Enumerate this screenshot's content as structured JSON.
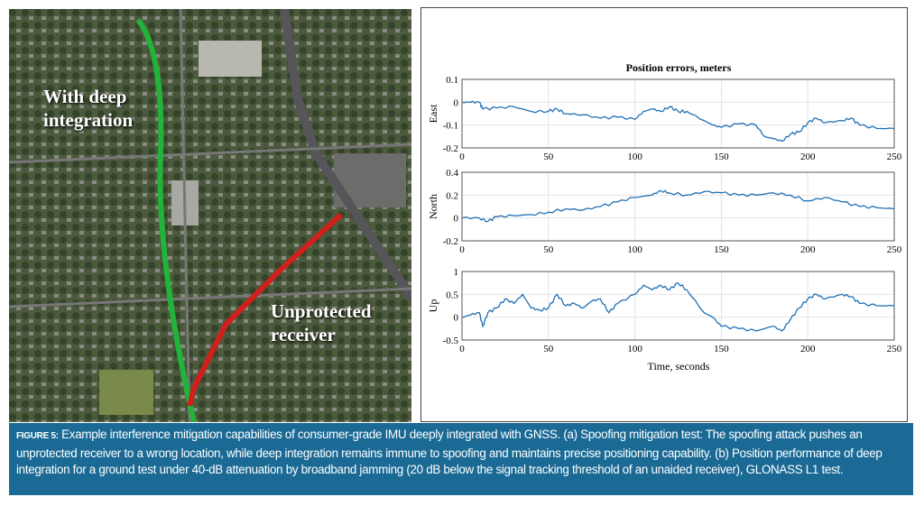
{
  "map": {
    "label_deep": "With deep integration",
    "label_deep_lines": [
      "With deep",
      "integration"
    ],
    "label_unprot_lines": [
      "Unprotected",
      "receiver"
    ],
    "colors": {
      "deep": "#22b33a",
      "unprotected": "#d0201c"
    }
  },
  "caption": {
    "figure": "FIGURE 5:",
    "text": " Example interference mitigation capabilities of consumer-grade IMU deeply integrated with GNSS. (a) Spoofing mitigation test: The spoofing attack pushes an unprotected receiver to a wrong location, while deep integration remains immune to spoofing and maintains precise positioning capability. (b) Position performance of deep integration for a ground test under 40-dB attenuation by broadband jamming (20 dB below the signal tracking threshold of an unaided receiver), GLONASS L1 test."
  },
  "chart_data": {
    "type": "line",
    "title": "Position errors, meters",
    "xlabel": "Time, seconds",
    "xlim": [
      0,
      250
    ],
    "xticks": [
      "0",
      "50",
      "100",
      "150",
      "200",
      "250"
    ],
    "line_color": "#1f6fb4",
    "grid": true,
    "panels": [
      {
        "ylabel": "East",
        "ylim": [
          -0.2,
          0.1
        ],
        "yticks": [
          "0.1",
          "0",
          "-0.1",
          "-0.2"
        ],
        "x": [
          0,
          5,
          10,
          12,
          20,
          30,
          40,
          50,
          55,
          60,
          70,
          80,
          90,
          100,
          105,
          110,
          115,
          120,
          125,
          130,
          140,
          145,
          150,
          160,
          170,
          175,
          180,
          185,
          190,
          195,
          200,
          205,
          210,
          220,
          225,
          230,
          240,
          250
        ],
        "y": [
          0,
          0,
          0,
          -0.03,
          -0.025,
          -0.02,
          -0.04,
          -0.04,
          -0.03,
          -0.05,
          -0.055,
          -0.07,
          -0.065,
          -0.075,
          -0.04,
          -0.03,
          -0.04,
          -0.02,
          -0.04,
          -0.04,
          -0.08,
          -0.1,
          -0.11,
          -0.095,
          -0.1,
          -0.15,
          -0.16,
          -0.17,
          -0.14,
          -0.13,
          -0.09,
          -0.07,
          -0.09,
          -0.08,
          -0.07,
          -0.1,
          -0.115,
          -0.115
        ]
      },
      {
        "ylabel": "North",
        "ylim": [
          -0.2,
          0.4
        ],
        "yticks": [
          "0.4",
          "0.2",
          "0",
          "-0.2"
        ],
        "x": [
          0,
          10,
          15,
          20,
          30,
          40,
          50,
          60,
          70,
          80,
          90,
          100,
          110,
          115,
          120,
          130,
          140,
          150,
          160,
          170,
          180,
          190,
          200,
          210,
          220,
          230,
          240,
          250
        ],
        "y": [
          0,
          0,
          -0.03,
          0.01,
          0.02,
          0.03,
          0.05,
          0.08,
          0.07,
          0.1,
          0.14,
          0.18,
          0.2,
          0.24,
          0.22,
          0.2,
          0.23,
          0.22,
          0.2,
          0.2,
          0.22,
          0.2,
          0.15,
          0.18,
          0.14,
          0.1,
          0.09,
          0.08
        ]
      },
      {
        "ylabel": "Up",
        "ylim": [
          -0.5,
          1
        ],
        "yticks": [
          "1",
          "0.5",
          "0",
          "-0.5"
        ],
        "x": [
          0,
          5,
          10,
          12,
          15,
          20,
          25,
          30,
          35,
          40,
          45,
          50,
          55,
          60,
          65,
          70,
          75,
          80,
          85,
          90,
          100,
          105,
          110,
          115,
          120,
          125,
          130,
          140,
          145,
          150,
          160,
          170,
          180,
          185,
          190,
          195,
          200,
          205,
          210,
          220,
          225,
          230,
          240,
          250
        ],
        "y": [
          0,
          0.05,
          0.1,
          -0.2,
          0.1,
          0.2,
          0.4,
          0.3,
          0.5,
          0.2,
          0.15,
          0.2,
          0.5,
          0.25,
          0.3,
          0.2,
          0.35,
          0.4,
          0.1,
          0.3,
          0.5,
          0.7,
          0.6,
          0.7,
          0.6,
          0.75,
          0.6,
          0.1,
          0,
          -0.2,
          -0.25,
          -0.3,
          -0.2,
          -0.3,
          -0.05,
          0.2,
          0.4,
          0.5,
          0.4,
          0.5,
          0.45,
          0.3,
          0.25,
          0.25
        ]
      }
    ]
  }
}
